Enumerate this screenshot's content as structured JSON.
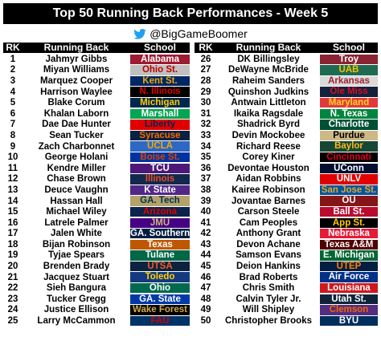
{
  "title": "Top 50 Running Back Performances - Week 5",
  "handle": "@BigGameBoomer",
  "icons": {
    "handle_icon": "twitter-bird-icon"
  },
  "headers": {
    "rk": "RK",
    "back": "Running Back",
    "school": "School"
  },
  "left": [
    {
      "rk": "1",
      "name": "Jahmyr Gibbs",
      "school": "Alabama",
      "bg": "#9E1B32",
      "fg": "#ffffff"
    },
    {
      "rk": "2",
      "name": "Miyan Williams",
      "school": "Ohio St.",
      "bg": "#C0C0C0",
      "fg": "#BB0000"
    },
    {
      "rk": "3",
      "name": "Marquez Cooper",
      "school": "Kent St.",
      "bg": "#002664",
      "fg": "#EAAB00"
    },
    {
      "rk": "4",
      "name": "Harrison Waylee",
      "school": "N. Illinois",
      "bg": "#000000",
      "fg": "#E00000"
    },
    {
      "rk": "5",
      "name": "Blake Corum",
      "school": "Michigan",
      "bg": "#00274C",
      "fg": "#FFCB05"
    },
    {
      "rk": "6",
      "name": "Khalan Laborn",
      "school": "Marshall",
      "bg": "#00A651",
      "fg": "#ffffff"
    },
    {
      "rk": "7",
      "name": "Dae Dae Hunter",
      "school": "Liberty",
      "bg": "#E10000",
      "fg": "#0A254E"
    },
    {
      "rk": "8",
      "name": "Sean Tucker",
      "school": "Syracuse",
      "bg": "#0A2240",
      "fg": "#F76900"
    },
    {
      "rk": "9",
      "name": "Zach Charbonnet",
      "school": "UCLA",
      "bg": "#2D68C4",
      "fg": "#F2A900"
    },
    {
      "rk": "10",
      "name": "George Holani",
      "school": "Boise St.",
      "bg": "#0033A0",
      "fg": "#D64309"
    },
    {
      "rk": "11",
      "name": "Kendre Miller",
      "school": "TCU",
      "bg": "#4D1979",
      "fg": "#ffffff"
    },
    {
      "rk": "12",
      "name": "Chase Brown",
      "school": "Illinois",
      "bg": "#13294B",
      "fg": "#E84A27"
    },
    {
      "rk": "13",
      "name": "Deuce Vaughn",
      "school": "K State",
      "bg": "#512888",
      "fg": "#ffffff"
    },
    {
      "rk": "14",
      "name": "Hassan Hall",
      "school": "GA. Tech",
      "bg": "#B3A369",
      "fg": "#003057"
    },
    {
      "rk": "15",
      "name": "Michael Wiley",
      "school": "Arizona",
      "bg": "#0C234B",
      "fg": "#E00000"
    },
    {
      "rk": "16",
      "name": "Latrele Palmer",
      "school": "JMU",
      "bg": "#450084",
      "fg": "#CBB677"
    },
    {
      "rk": "17",
      "name": "Jalen White",
      "school": "GA. Southern",
      "bg": "#041E42",
      "fg": "#ffffff"
    },
    {
      "rk": "18",
      "name": "Bijan Robinson",
      "school": "Texas",
      "bg": "#BF5700",
      "fg": "#ffffff"
    },
    {
      "rk": "19",
      "name": "Tyjae Spears",
      "school": "Tulane",
      "bg": "#006747",
      "fg": "#ffffff"
    },
    {
      "rk": "20",
      "name": "Brenden Brady",
      "school": "UTSA",
      "bg": "#0C2340",
      "fg": "#F15A22"
    },
    {
      "rk": "21",
      "name": "Jacquez Stuart",
      "school": "Toledo",
      "bg": "#15397F",
      "fg": "#FFD200"
    },
    {
      "rk": "22",
      "name": "Sieh Bangura",
      "school": "Ohio",
      "bg": "#00694E",
      "fg": "#ffffff"
    },
    {
      "rk": "23",
      "name": "Tucker Gregg",
      "school": "GA. State",
      "bg": "#0039A6",
      "fg": "#ffffff"
    },
    {
      "rk": "24",
      "name": "Justice Ellison",
      "school": "Wake Forest",
      "bg": "#000000",
      "fg": "#CFAA50"
    },
    {
      "rk": "25",
      "name": "Larry McCammon",
      "school": "FAU",
      "bg": "#003366",
      "fg": "#CC0000"
    }
  ],
  "right": [
    {
      "rk": "26",
      "name": "DK Billingsley",
      "school": "Troy",
      "bg": "#8A2432",
      "fg": "#ffffff"
    },
    {
      "rk": "27",
      "name": "DeWayne McBride",
      "school": "UAB",
      "bg": "#1E6B52",
      "fg": "#F4C300"
    },
    {
      "rk": "28",
      "name": "Raheim Sanders",
      "school": "Arkansas",
      "bg": "#D9D9D9",
      "fg": "#9D2235"
    },
    {
      "rk": "29",
      "name": "Quinshon Judkins",
      "school": "Ole Miss",
      "bg": "#14213D",
      "fg": "#CE1126"
    },
    {
      "rk": "30",
      "name": "Antwain Littleton",
      "school": "Maryland",
      "bg": "#E03A3E",
      "fg": "#FFD520"
    },
    {
      "rk": "31",
      "name": "Ikaika Ragsdale",
      "school": "N. Texas",
      "bg": "#00853E",
      "fg": "#ffffff"
    },
    {
      "rk": "32",
      "name": "Shadrick Byrd",
      "school": "Charlotte",
      "bg": "#005035",
      "fg": "#ffffff"
    },
    {
      "rk": "33",
      "name": "Devin Mockobee",
      "school": "Purdue",
      "bg": "#CEB888",
      "fg": "#000000"
    },
    {
      "rk": "34",
      "name": "Richard Reese",
      "school": "Baylor",
      "bg": "#154734",
      "fg": "#FFB81C"
    },
    {
      "rk": "35",
      "name": "Corey Kiner",
      "school": "Cincinnati",
      "bg": "#000000",
      "fg": "#E00122"
    },
    {
      "rk": "36",
      "name": "Devontae Houston",
      "school": "UConn",
      "bg": "#000E2F",
      "fg": "#ffffff"
    },
    {
      "rk": "37",
      "name": "Aidan Robbins",
      "school": "UNLV",
      "bg": "#E00000",
      "fg": "#ffffff"
    },
    {
      "rk": "38",
      "name": "Kairee Robinson",
      "school": "San Jose St.",
      "bg": "#0055A2",
      "fg": "#E5A823"
    },
    {
      "rk": "39",
      "name": "Jovantae Barnes",
      "school": "OU",
      "bg": "#841617",
      "fg": "#ffffff"
    },
    {
      "rk": "40",
      "name": "Carson Steele",
      "school": "Ball St.",
      "bg": "#BA0C2F",
      "fg": "#ffffff"
    },
    {
      "rk": "41",
      "name": "Cam Peoples",
      "school": "App St.",
      "bg": "#000000",
      "fg": "#FFCC00"
    },
    {
      "rk": "42",
      "name": "Anthony Grant",
      "school": "Nebraska",
      "bg": "#E41C38",
      "fg": "#ffffff"
    },
    {
      "rk": "43",
      "name": "Devon Achane",
      "school": "Texas A&M",
      "bg": "#500000",
      "fg": "#ffffff"
    },
    {
      "rk": "44",
      "name": "Samson Evans",
      "school": "E. Michigan",
      "bg": "#006633",
      "fg": "#ffffff"
    },
    {
      "rk": "45",
      "name": "Deion Hankins",
      "school": "UTEP",
      "bg": "#041E42",
      "fg": "#FF8200"
    },
    {
      "rk": "46",
      "name": "Brad Roberts",
      "school": "Air Force",
      "bg": "#003087",
      "fg": "#ffffff"
    },
    {
      "rk": "47",
      "name": "Chris Smith",
      "school": "Louisiana",
      "bg": "#CE181E",
      "fg": "#ffffff"
    },
    {
      "rk": "48",
      "name": "Calvin Tyler Jr.",
      "school": "Utah St.",
      "bg": "#0F2439",
      "fg": "#ffffff"
    },
    {
      "rk": "49",
      "name": "Will Shipley",
      "school": "Clemson",
      "bg": "#522D80",
      "fg": "#F56600"
    },
    {
      "rk": "50",
      "name": "Christopher Brooks",
      "school": "BYU",
      "bg": "#002E5D",
      "fg": "#ffffff"
    }
  ]
}
